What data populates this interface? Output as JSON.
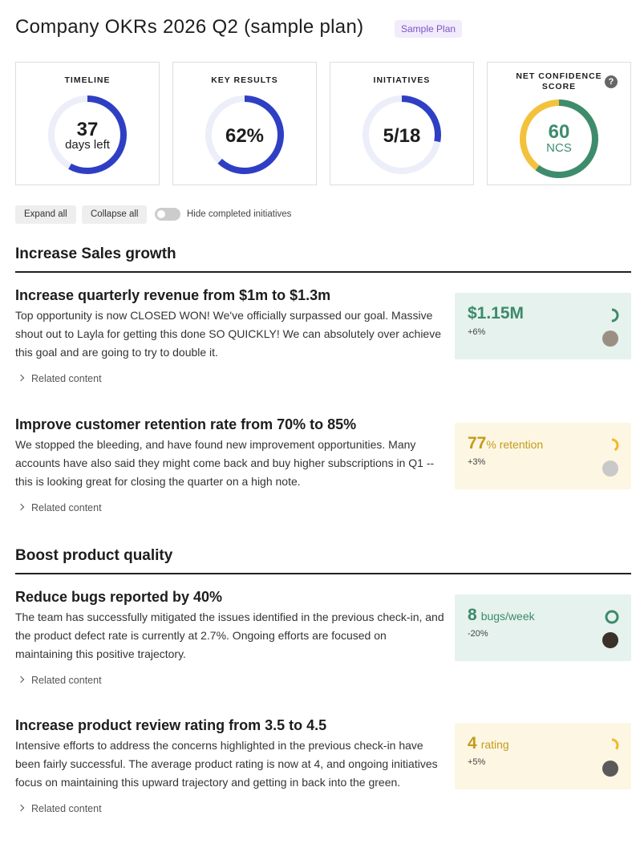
{
  "header": {
    "title": "Company OKRs 2026 Q2 (sample plan)",
    "badge": "Sample Plan"
  },
  "summary": [
    {
      "label": "TIMELINE",
      "value": "37",
      "unit": "days left"
    },
    {
      "label": "KEY RESULTS",
      "value": "62%"
    },
    {
      "label": "INITIATIVES",
      "value": "5/18"
    },
    {
      "label": "NET CONFIDENCE SCORE",
      "value": "60",
      "unit": "NCS",
      "help": "?"
    }
  ],
  "toolbar": {
    "expand": "Expand all",
    "collapse": "Collapse all",
    "toggle": "Hide completed initiatives"
  },
  "objectives": [
    {
      "title": "Increase Sales growth",
      "key_results": [
        {
          "title": "Increase quarterly revenue from $1m to $1.3m",
          "description": "Top opportunity is now CLOSED WON! We've officially surpassed our goal. Massive shout out to Layla for getting this done SO QUICKLY! We can absolutely over achieve this goal and are going to try to double it.",
          "related": "Related content",
          "metric": "$1.15M",
          "change": "+6%"
        },
        {
          "title": "Improve customer retention rate from 70% to 85%",
          "description": "We stopped the bleeding, and have found new improvement opportunities. Many accounts have also said they might come back and buy higher subscriptions in Q1 -- this is looking great for closing the quarter on a high note.",
          "related": "Related content",
          "metric": "77",
          "unit": "% retention",
          "change": "+3%"
        }
      ]
    },
    {
      "title": "Boost product quality",
      "key_results": [
        {
          "title": "Reduce bugs reported by 40%",
          "description": "The team has successfully mitigated the issues identified in the previous check-in, and the product defect rate is currently at 2.7%. Ongoing efforts are focused on maintaining this positive trajectory.",
          "related": "Related content",
          "metric": "8",
          "unit": "bugs/week",
          "change": "-20%"
        },
        {
          "title": "Increase product review rating from 3.5 to 4.5",
          "description": "Intensive efforts to address the concerns highlighted in the previous check-in have been fairly successful. The average product rating is now at 4, and ongoing initiatives focus on maintaining this upward trajectory and getting in back into the green.",
          "related": "Related content",
          "metric": "4",
          "unit": "rating",
          "change": "+5%"
        }
      ]
    }
  ]
}
